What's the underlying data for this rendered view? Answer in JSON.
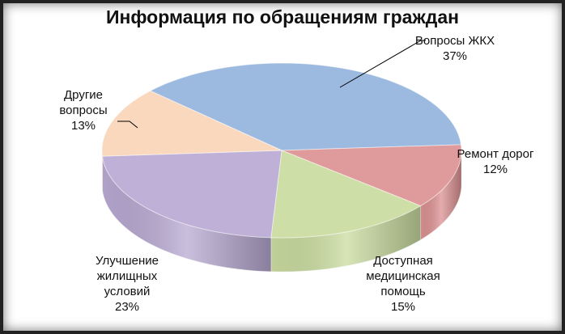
{
  "chart_data": {
    "type": "pie",
    "title": "Информация  по обращениям граждан",
    "categories": [
      "Вопросы ЖКХ",
      "Ремонт дорог",
      "Доступная медицинская помощь",
      "Улучшение жилищных условий",
      "Другие вопросы"
    ],
    "values": [
      37,
      12,
      15,
      23,
      13
    ],
    "value_labels": [
      "37%",
      "12%",
      "15%",
      "23%",
      "13%"
    ],
    "colors": [
      "#94b3dc",
      "#dc9192",
      "#c9dc9f",
      "#b8a9d2",
      "#f8d5b7"
    ]
  }
}
